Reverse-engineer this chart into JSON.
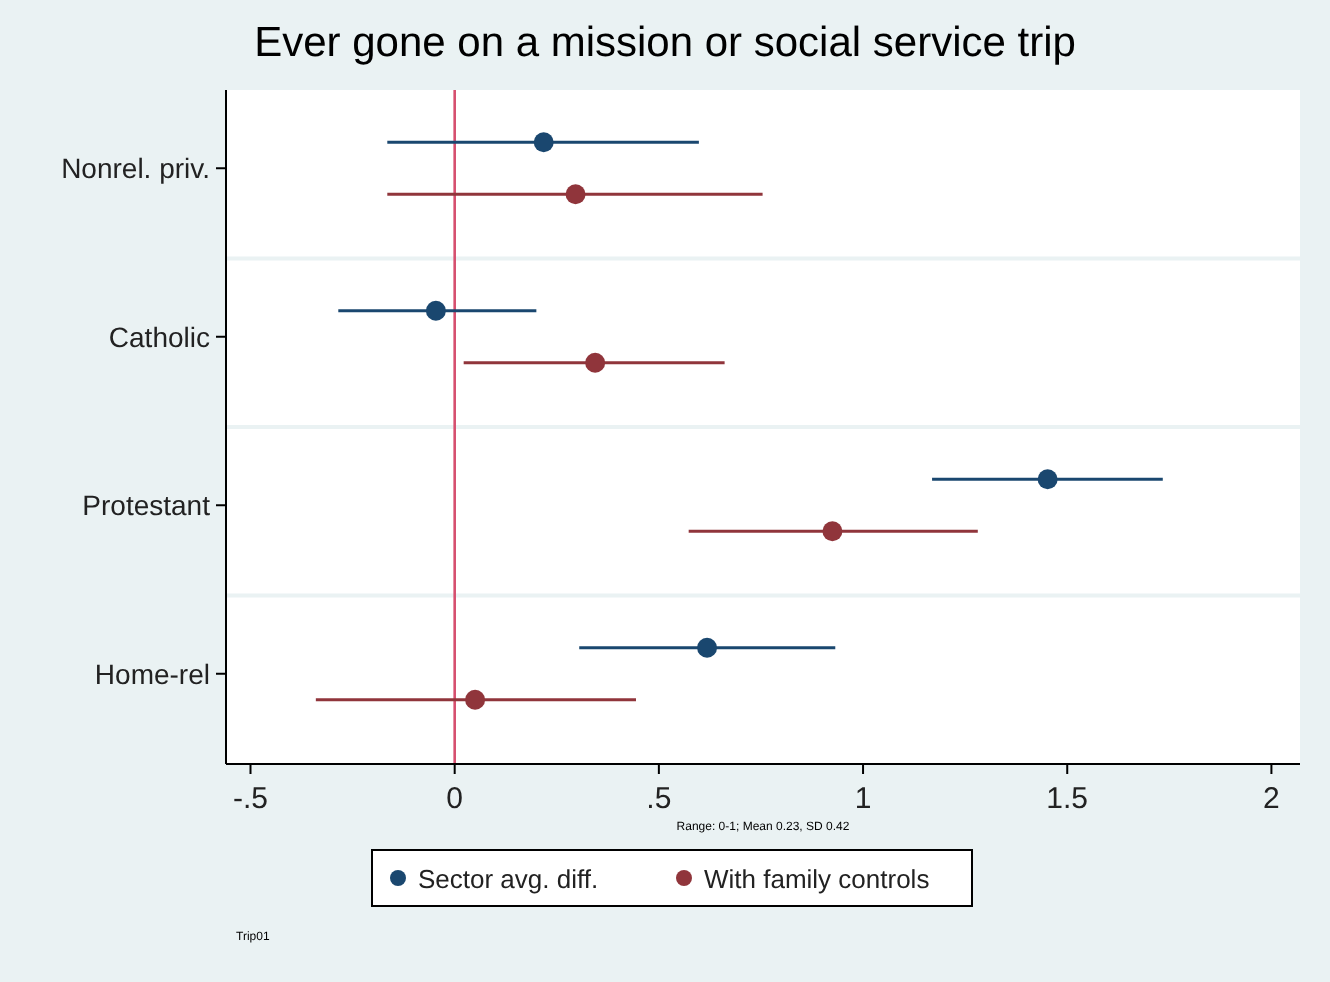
{
  "chart_data": {
    "type": "scatter",
    "orientation": "horizontal",
    "title": "Ever gone on a mission or social service trip",
    "categories": [
      "Nonrel. priv.",
      "Catholic",
      "Protestant",
      "Home-rel"
    ],
    "series": [
      {
        "name": "Sector avg. diff.",
        "color": "#1a476f",
        "values": [
          0.218,
          -0.046,
          1.452,
          0.618
        ],
        "errors": [
          [
            -0.165,
            0.598
          ],
          [
            -0.285,
            0.2
          ],
          [
            1.169,
            1.734
          ],
          [
            0.305,
            0.932
          ]
        ]
      },
      {
        "name": "With family controls",
        "color": "#90353b",
        "values": [
          0.296,
          0.344,
          0.925,
          0.05
        ],
        "errors": [
          [
            -0.165,
            0.754
          ],
          [
            0.022,
            0.661
          ],
          [
            0.573,
            1.281
          ],
          [
            -0.34,
            0.444
          ]
        ]
      }
    ],
    "xlim": [
      -0.56,
      2.07
    ],
    "xticks": [
      {
        "value": -0.5,
        "label": "-.5"
      },
      0,
      {
        "value": 0.5,
        "label": ".5"
      },
      1,
      1.5,
      2
    ],
    "ref_lines": [
      {
        "axis": "x",
        "value": 0,
        "color": "#d6506f"
      }
    ],
    "grid": true,
    "legend": "bottom",
    "marker": "circle",
    "annotations": [
      "Range: 0-1; Mean 0.23, SD 0.42",
      "Trip01"
    ]
  }
}
